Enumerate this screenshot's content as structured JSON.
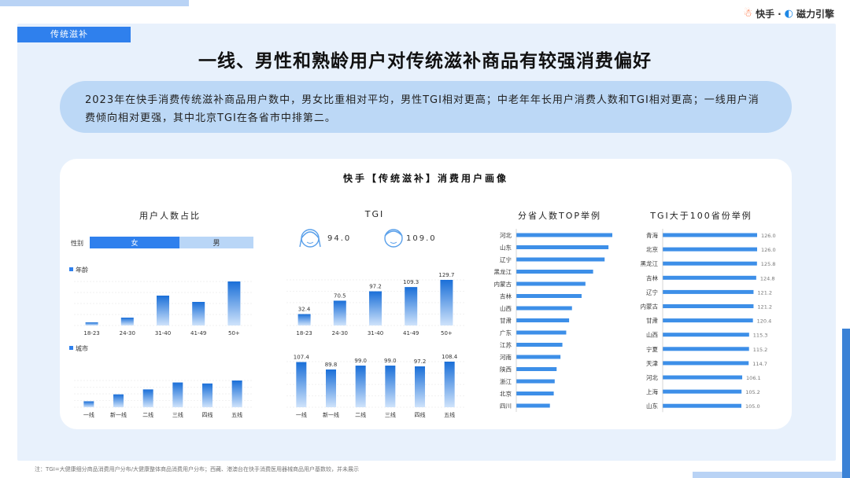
{
  "brand": {
    "kuaishou": "快手",
    "separator": "·",
    "cili": "磁力引擎"
  },
  "section_tag": "传统滋补",
  "headline": "一线、男性和熟龄用户对传统滋补商品有较强消费偏好",
  "summary": "2023年在快手消费传统滋补商品用户数中，男女比重相对平均，男性TGI相对更高；中老年年长用户消费人数和TGI相对更高；一线用户消费倾向相对更强，其中北京TGI在各省市中排第二。",
  "card_title": "快手【传统滋补】消费用户画像",
  "panels": {
    "users": "用户人数占比",
    "tgi": "TGI",
    "province_top": "分省人数TOP举例",
    "tgi_over100": "TGI大于100省份举例"
  },
  "gender": {
    "row_label": "性别",
    "female_label": "女",
    "male_label": "男",
    "female_share": 0.55
  },
  "tgi_gender": {
    "female": "94.0",
    "male": "109.0"
  },
  "colors": {
    "primary": "#2f80ed",
    "light": "#b9d6f7",
    "bar_top": "#1a6fd8",
    "bar_bottom": "#d2e6fb"
  },
  "footnote": "注：TGI=大健康细分商品消费用户分布/大健康整体商品消费用户分布；西藏、港澳台在快手消费医用器械商品用户基数较，并未展示",
  "chart_data": [
    {
      "type": "bar",
      "id": "age_share",
      "legend": "年龄",
      "categories": [
        "18-23",
        "24-30",
        "31-40",
        "41-49",
        "50+"
      ],
      "values": [
        2,
        5,
        19,
        15,
        28
      ]
    },
    {
      "type": "bar",
      "id": "city_share",
      "legend": "城市",
      "categories": [
        "一线",
        "新一线",
        "二线",
        "三线",
        "四线",
        "五线"
      ],
      "values": [
        6,
        13,
        18,
        25,
        24,
        27
      ]
    },
    {
      "type": "bar",
      "id": "age_tgi",
      "categories": [
        "18-23",
        "24-30",
        "31-40",
        "41-49",
        "50+"
      ],
      "values": [
        32.4,
        70.5,
        97.2,
        109.3,
        129.7
      ],
      "labels": [
        "32.4",
        "70.5",
        "97.2",
        "109.3",
        "129.7"
      ]
    },
    {
      "type": "bar",
      "id": "city_tgi",
      "categories": [
        "一线",
        "新一线",
        "二线",
        "三线",
        "四线",
        "五线"
      ],
      "values": [
        107.4,
        89.8,
        99.0,
        99.0,
        97.2,
        108.4
      ],
      "labels": [
        "107.4",
        "89.8",
        "99.0",
        "99.0",
        "97.2",
        "108.4"
      ]
    },
    {
      "type": "bar",
      "id": "province_top",
      "orientation": "horizontal",
      "categories": [
        "河北",
        "山东",
        "辽宁",
        "黑龙江",
        "内蒙古",
        "吉林",
        "山西",
        "甘肃",
        "广东",
        "江苏",
        "河南",
        "陕西",
        "浙江",
        "北京",
        "四川"
      ],
      "values": [
        100,
        96,
        92,
        80,
        72,
        68,
        58,
        55,
        52,
        48,
        46,
        42,
        40,
        39,
        35
      ]
    },
    {
      "type": "bar",
      "id": "tgi_over100",
      "orientation": "horizontal",
      "categories": [
        "青海",
        "北京",
        "黑龙江",
        "吉林",
        "辽宁",
        "内蒙古",
        "甘肃",
        "山西",
        "宁夏",
        "天津",
        "河北",
        "上海",
        "山东"
      ],
      "values": [
        126.0,
        126.0,
        125.8,
        124.8,
        121.2,
        121.2,
        120.4,
        115.3,
        115.2,
        114.7,
        106.1,
        105.2,
        105.0
      ],
      "labels": [
        "126.0",
        "126.0",
        "125.8",
        "124.8",
        "121.2",
        "121.2",
        "120.4",
        "115.3",
        "115.2",
        "114.7",
        "106.1",
        "105.2",
        "105.0"
      ]
    }
  ]
}
